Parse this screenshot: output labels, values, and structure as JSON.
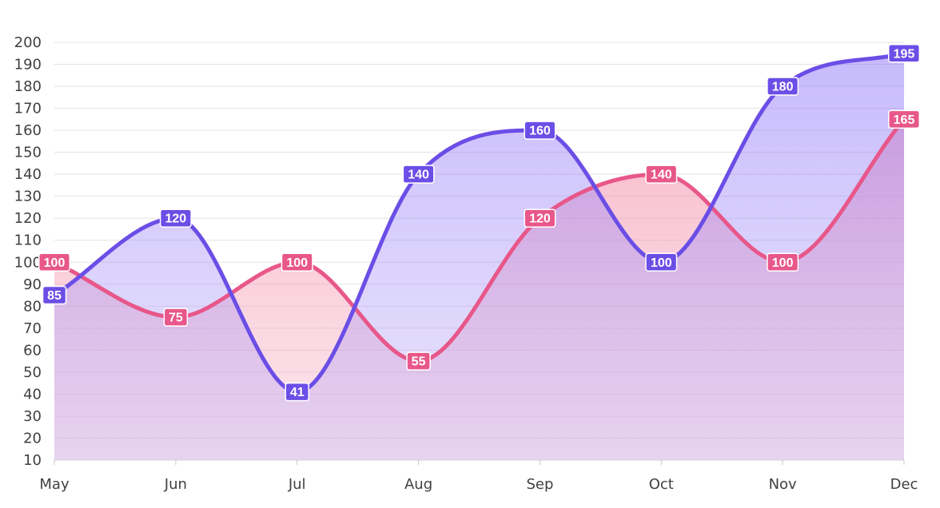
{
  "chart_data": {
    "type": "area",
    "categories": [
      "May",
      "Jun",
      "Jul",
      "Aug",
      "Sep",
      "Oct",
      "Nov",
      "Dec"
    ],
    "series": [
      {
        "values": [
          100,
          75,
          100,
          55,
          120,
          140,
          100,
          165
        ],
        "color": "#E8578A"
      },
      {
        "values": [
          85,
          120,
          41,
          140,
          160,
          100,
          180,
          195
        ],
        "color": "#6B4EE6"
      }
    ],
    "ylim": [
      10,
      200
    ],
    "yticks": [
      10,
      20,
      30,
      40,
      50,
      60,
      70,
      80,
      90,
      100,
      110,
      120,
      130,
      140,
      150,
      160,
      170,
      180,
      190,
      200
    ],
    "grid": true,
    "data_labels": true,
    "curve": "smooth",
    "title": "",
    "xlabel": "",
    "ylabel": ""
  }
}
